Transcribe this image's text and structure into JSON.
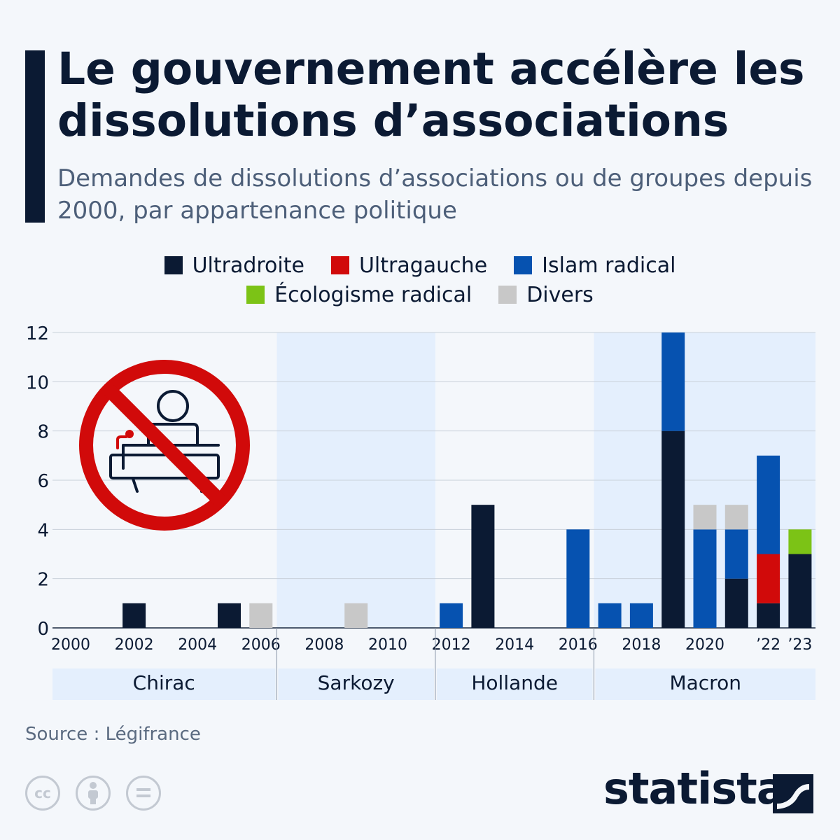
{
  "header": {
    "title": "Le gouvernement accélère les dissolutions d’associations",
    "subtitle": "Demandes de dissolutions d’associations ou de groupes depuis 2000, par appartenance politique"
  },
  "legend": [
    {
      "label": "Ultradroite",
      "color": "#0b1a33"
    },
    {
      "label": "Ultragauche",
      "color": "#d10a0a"
    },
    {
      "label": "Islam radical",
      "color": "#0652b0"
    },
    {
      "label": "Écologisme radical",
      "color": "#7cc316"
    },
    {
      "label": "Divers",
      "color": "#c8c8c8"
    }
  ],
  "chart_data": {
    "type": "bar",
    "stacked": true,
    "categories": [
      "2000",
      "2001",
      "2002",
      "2003",
      "2004",
      "2005",
      "2006",
      "2007",
      "2008",
      "2009",
      "2010",
      "2011",
      "2012",
      "2013",
      "2014",
      "2015",
      "2016",
      "2017",
      "2018",
      "2019",
      "2020",
      "2021",
      "2022",
      "2023"
    ],
    "x_tick_labels": [
      {
        "year": "2000",
        "label": "2000"
      },
      {
        "year": "2002",
        "label": "2002"
      },
      {
        "year": "2004",
        "label": "2004"
      },
      {
        "year": "2006",
        "label": "2006"
      },
      {
        "year": "2008",
        "label": "2008"
      },
      {
        "year": "2010",
        "label": "2010"
      },
      {
        "year": "2012",
        "label": "2012"
      },
      {
        "year": "2014",
        "label": "2014"
      },
      {
        "year": "2016",
        "label": "2016"
      },
      {
        "year": "2018",
        "label": "2018"
      },
      {
        "year": "2020",
        "label": "2020"
      },
      {
        "year": "2022",
        "label": "’22"
      },
      {
        "year": "2023",
        "label": "’23"
      }
    ],
    "series": [
      {
        "name": "Ultradroite",
        "color": "#0b1a33",
        "values": [
          0,
          0,
          1,
          0,
          0,
          1,
          0,
          0,
          0,
          0,
          0,
          0,
          0,
          5,
          0,
          0,
          0,
          0,
          0,
          8,
          0,
          2,
          1,
          3
        ]
      },
      {
        "name": "Ultragauche",
        "color": "#d10a0a",
        "values": [
          0,
          0,
          0,
          0,
          0,
          0,
          0,
          0,
          0,
          0,
          0,
          0,
          0,
          0,
          0,
          0,
          0,
          0,
          0,
          0,
          0,
          0,
          2,
          0
        ]
      },
      {
        "name": "Islam radical",
        "color": "#0652b0",
        "values": [
          0,
          0,
          0,
          0,
          0,
          0,
          0,
          0,
          0,
          0,
          0,
          0,
          1,
          0,
          0,
          0,
          4,
          1,
          1,
          4,
          4,
          2,
          4,
          0
        ]
      },
      {
        "name": "Écologisme radical",
        "color": "#7cc316",
        "values": [
          0,
          0,
          0,
          0,
          0,
          0,
          0,
          0,
          0,
          0,
          0,
          0,
          0,
          0,
          0,
          0,
          0,
          0,
          0,
          0,
          0,
          0,
          0,
          1
        ]
      },
      {
        "name": "Divers",
        "color": "#c8c8c8",
        "values": [
          0,
          0,
          0,
          0,
          0,
          0,
          1,
          0,
          0,
          1,
          0,
          0,
          0,
          0,
          0,
          0,
          0,
          0,
          0,
          0,
          1,
          1,
          0,
          0
        ]
      }
    ],
    "ylim": [
      0,
      12
    ],
    "y_ticks": [
      0,
      2,
      4,
      6,
      8,
      10,
      12
    ],
    "grid": true,
    "periods": [
      {
        "label": "Chirac",
        "from": "2000",
        "to": "2007",
        "shaded": false
      },
      {
        "label": "Sarkozy",
        "from": "2007",
        "to": "2012",
        "shaded": true
      },
      {
        "label": "Hollande",
        "from": "2012",
        "to": "2017",
        "shaded": false
      },
      {
        "label": "Macron",
        "from": "2017",
        "to": "2023",
        "shaded": true
      }
    ],
    "period_colors": {
      "shade": "#e4effd",
      "band": "#e4effd"
    }
  },
  "footer": {
    "source": "Source : Légifrance",
    "brand": "statista",
    "license_icons": [
      "cc-icon",
      "attribution-icon",
      "no-derivatives-icon"
    ]
  }
}
